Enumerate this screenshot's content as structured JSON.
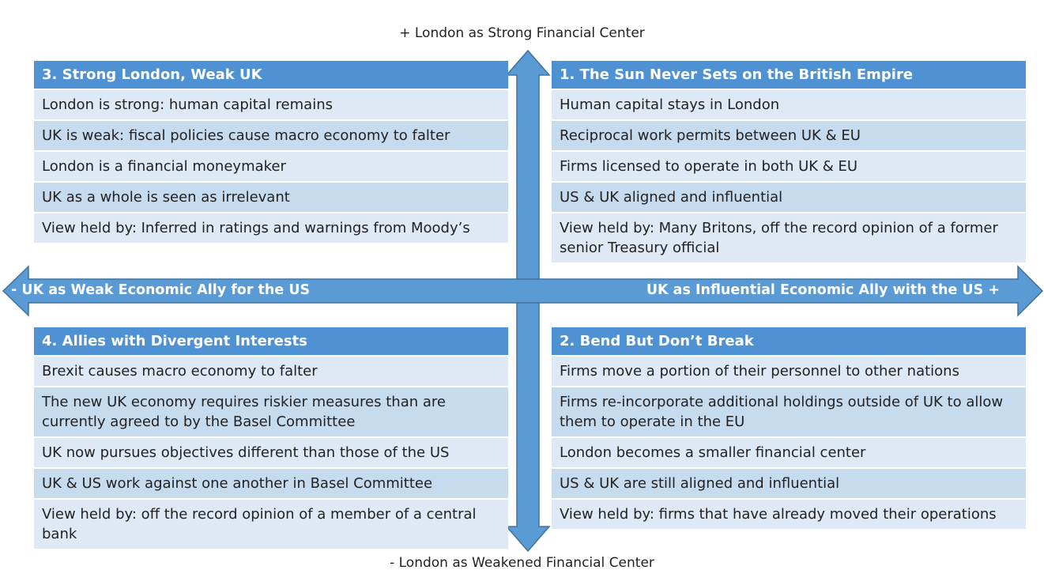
{
  "axes": {
    "top": "+ London as Strong Financial Center",
    "bottom": "- London as Weakened Financial Center",
    "left": "- UK as Weak Economic Ally for the US",
    "right": "UK as Influential Economic Ally with the US +"
  },
  "quadrants": [
    {
      "title": "3. Strong London, Weak UK",
      "items": [
        "London is strong: human capital remains",
        "UK is weak: fiscal policies cause macro economy to falter",
        "London is a financial moneymaker",
        "UK as a whole is seen as irrelevant",
        "View held by: Inferred in ratings and warnings from Moody’s"
      ]
    },
    {
      "title": "1. The Sun Never Sets on the British Empire",
      "items": [
        "Human capital stays in London",
        "Reciprocal work permits between UK & EU",
        "Firms licensed to operate in both UK & EU",
        "US & UK aligned and influential",
        "View held by: Many Britons, off the record opinion of a former senior Treasury official"
      ]
    },
    {
      "title": "4. Allies with Divergent Interests",
      "items": [
        "Brexit causes macro economy to falter",
        "The new UK economy requires riskier measures than are currently agreed to by the Basel Committee",
        "UK now pursues objectives different than those of the US",
        "UK & US work against one another in Basel Committee",
        "View held by: off the record opinion of a member of a central bank"
      ]
    },
    {
      "title": "2. Bend But Don’t Break",
      "items": [
        "Firms move a portion of their personnel to other nations",
        "Firms re-incorporate additional holdings outside of UK to allow them to operate in the EU",
        "London becomes a smaller financial center",
        "US & UK are still aligned and influential",
        "View held by: firms that have already moved their operations"
      ]
    }
  ]
}
